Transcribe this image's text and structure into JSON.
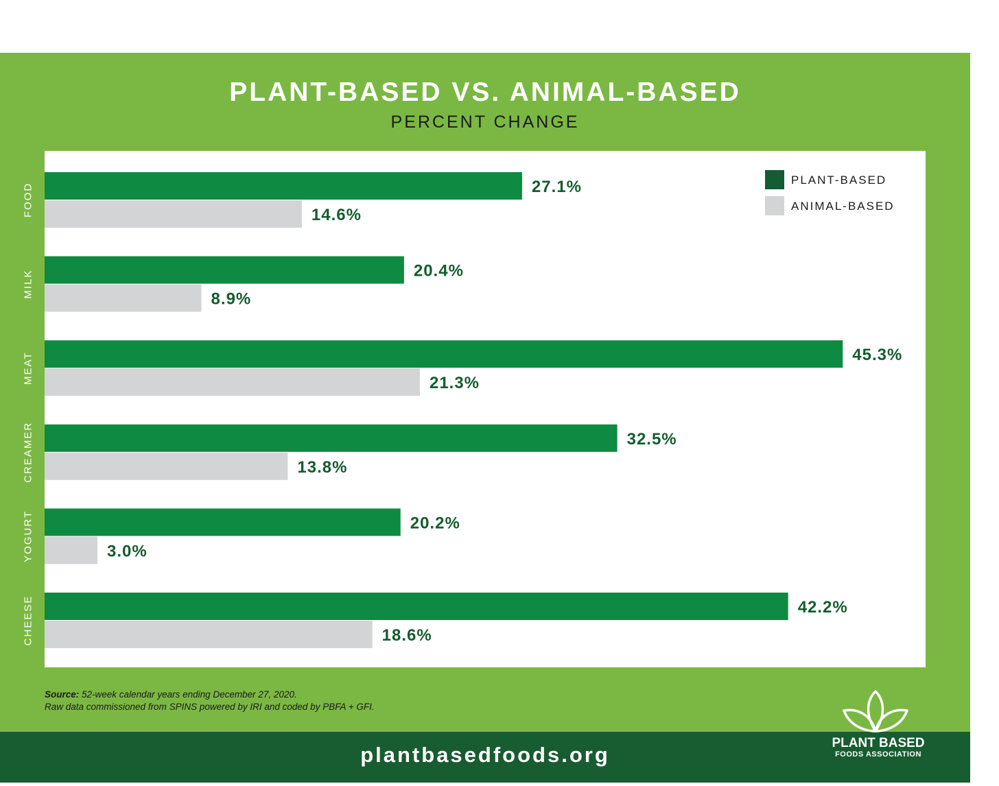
{
  "header": {
    "title": "PLANT-BASED VS. ANIMAL-BASED",
    "subtitle": "PERCENT CHANGE"
  },
  "colors": {
    "frame": "#7ab843",
    "plant": "#0e8a43",
    "animal": "#d3d4d6",
    "label_text": "#145c2f",
    "legend_plant": "#145c34",
    "footer": "#185c31"
  },
  "chart_data": {
    "type": "bar",
    "orientation": "horizontal",
    "title": "PLANT-BASED VS. ANIMAL-BASED",
    "subtitle": "PERCENT CHANGE",
    "categories": [
      "FOOD",
      "MILK",
      "MEAT",
      "CREAMER",
      "YOGURT",
      "CHEESE"
    ],
    "series": [
      {
        "name": "PLANT-BASED",
        "values": [
          27.1,
          20.4,
          45.3,
          32.5,
          20.2,
          42.2
        ],
        "labels": [
          "27.1%",
          "20.4%",
          "45.3%",
          "32.5%",
          "20.2%",
          "42.2%"
        ]
      },
      {
        "name": "ANIMAL-BASED",
        "values": [
          14.6,
          8.9,
          21.3,
          13.8,
          3.0,
          18.6
        ],
        "labels": [
          "14.6%",
          "8.9%",
          "21.3%",
          "13.8%",
          "3.0%",
          "18.6%"
        ]
      }
    ],
    "unit": "%",
    "xlim": [
      0,
      50
    ],
    "grid": false,
    "legend_position": "top-right"
  },
  "source": {
    "label": "Source:",
    "line1": "52-week calendar years ending December 27, 2020.",
    "line2": "Raw data commissioned from SPINS powered by IRI and coded by PBFA + GFI."
  },
  "footer": {
    "website": "plantbasedfoods.org",
    "logo_name": "PLANT BASED",
    "logo_sub": "FOODS ASSOCIATION"
  }
}
